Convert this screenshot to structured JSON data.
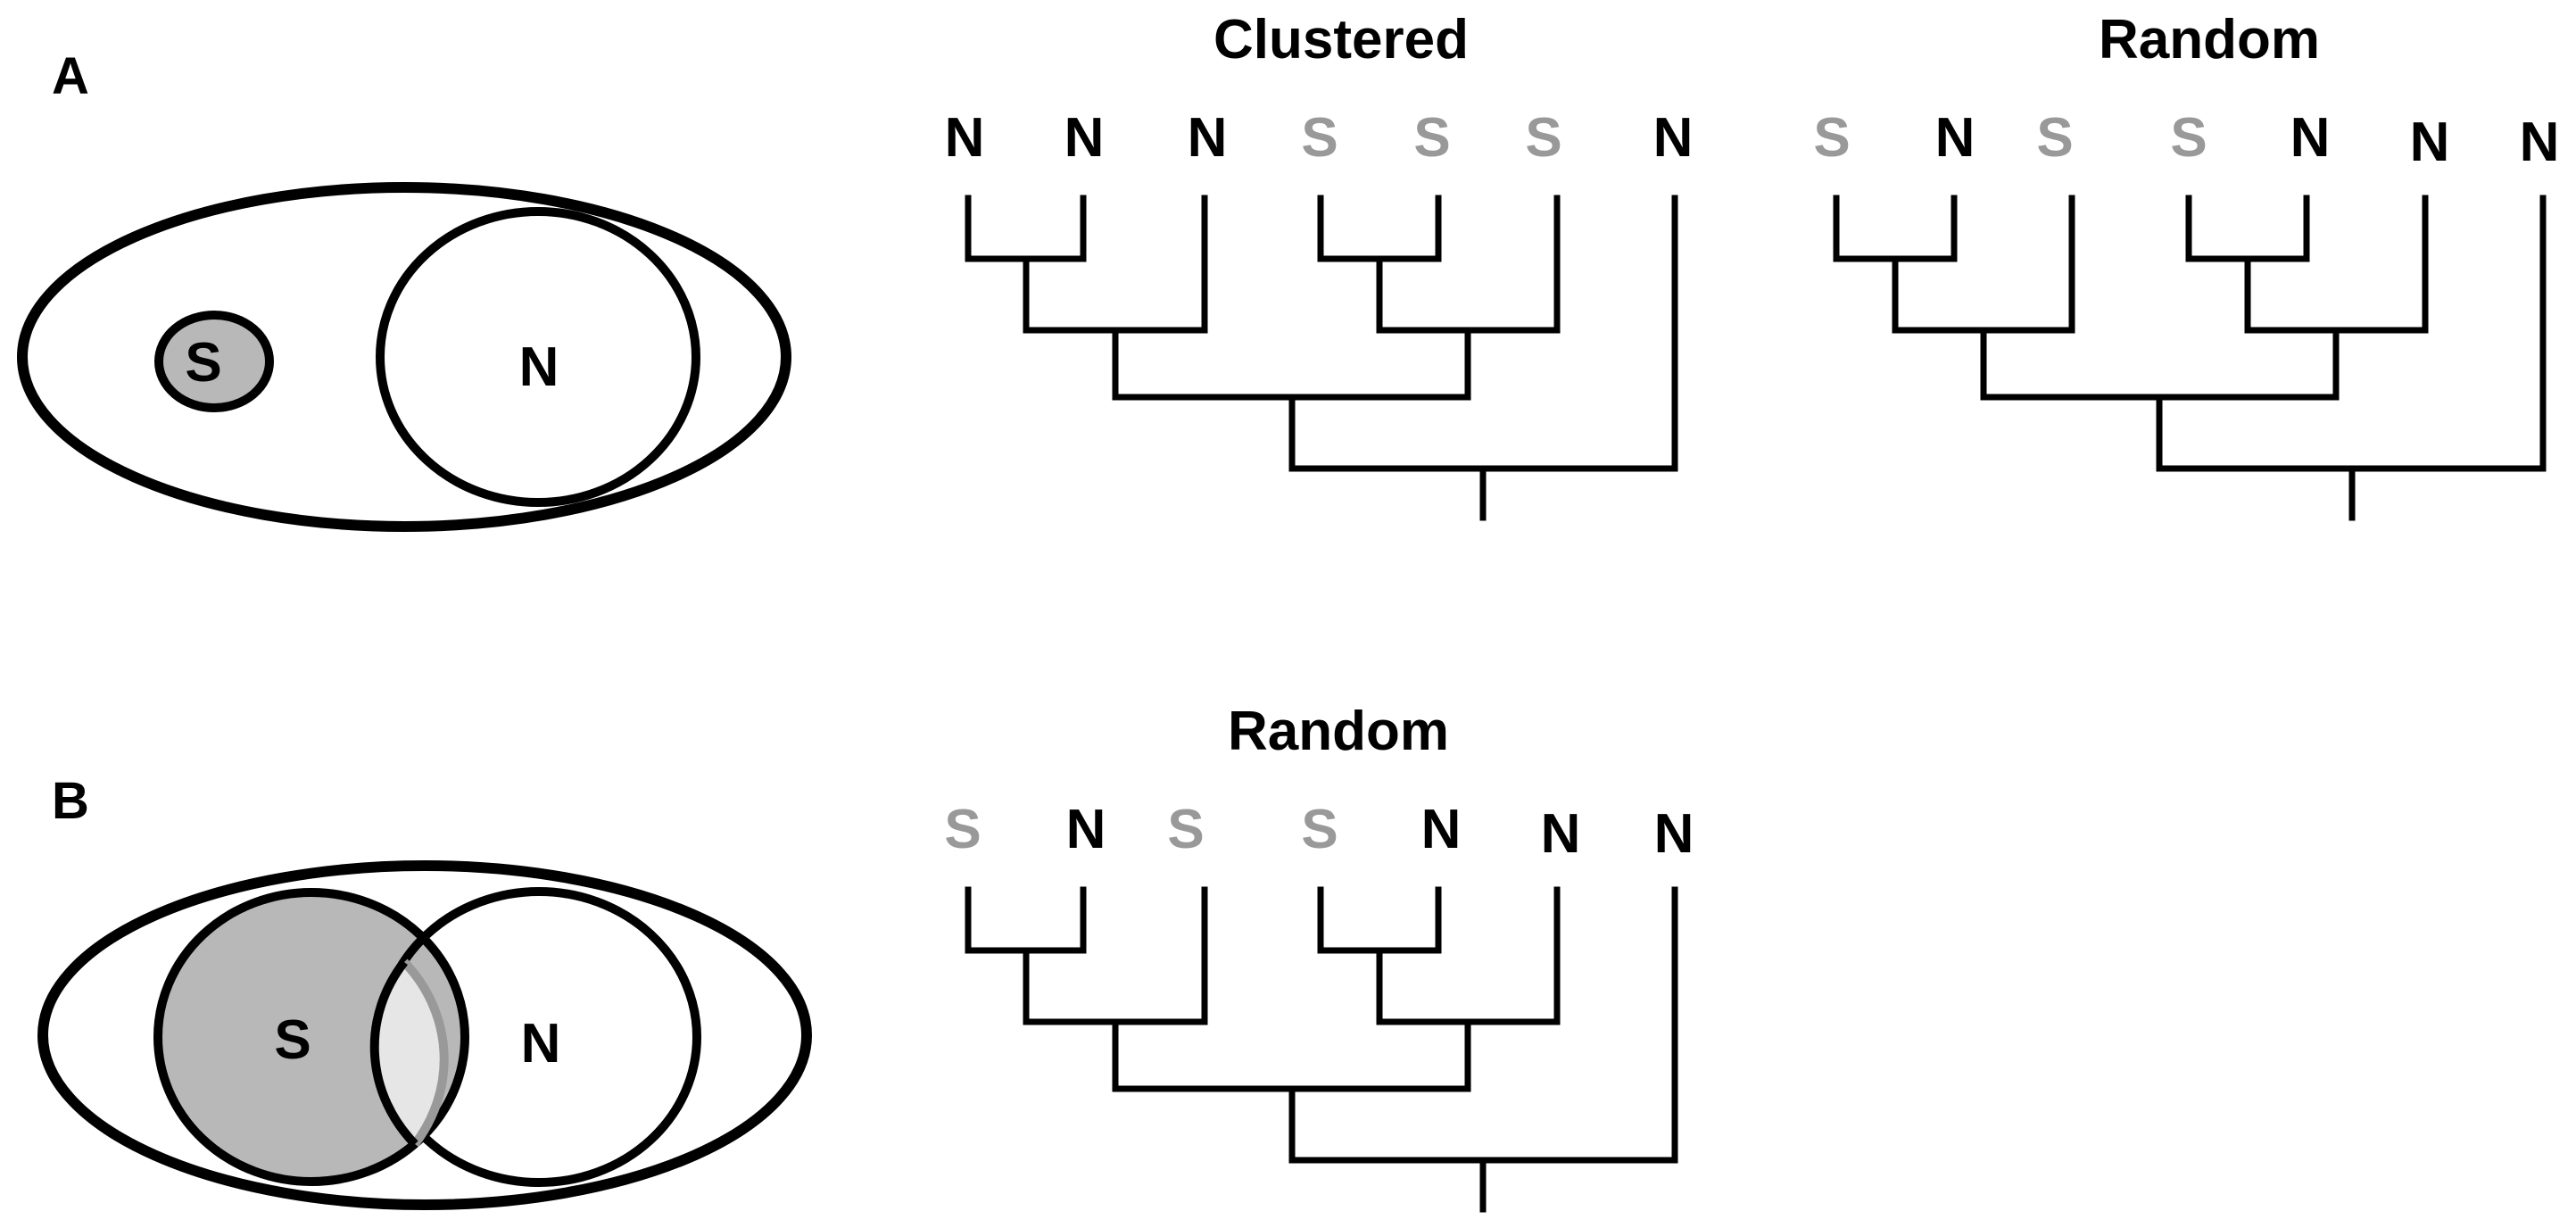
{
  "panels": {
    "a": {
      "letter": "A",
      "venn": {
        "s_label": "S",
        "n_label": "N"
      },
      "trees": [
        {
          "title": "Clustered",
          "tips": [
            "N",
            "N",
            "N",
            "S",
            "S",
            "S",
            "N"
          ]
        },
        {
          "title": "Random",
          "tips": [
            "S",
            "N",
            "S",
            "S",
            "N",
            "N",
            "N"
          ]
        }
      ]
    },
    "b": {
      "letter": "B",
      "venn": {
        "s_label": "S",
        "n_label": "N"
      },
      "trees": [
        {
          "title": "Random",
          "tips": [
            "S",
            "N",
            "S",
            "S",
            "N",
            "N",
            "N"
          ]
        }
      ]
    }
  },
  "colors": {
    "n_tip": "#000000",
    "s_tip": "#999999",
    "s_fill": "#b8b8b8",
    "overlap_fill": "#e6e6e6",
    "stroke": "#000000"
  }
}
